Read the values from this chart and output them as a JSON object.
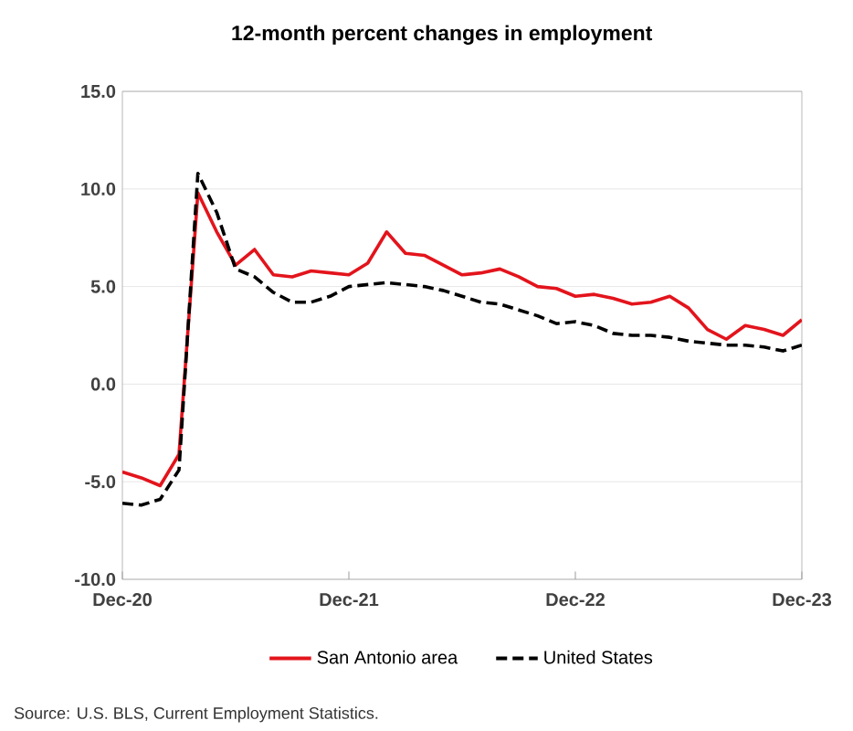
{
  "chart_data": {
    "type": "line",
    "title": "12-month percent changes in employment",
    "x": [
      "2020-12",
      "2021-01",
      "2021-02",
      "2021-03",
      "2021-04",
      "2021-05",
      "2021-06",
      "2021-07",
      "2021-08",
      "2021-09",
      "2021-10",
      "2021-11",
      "2021-12",
      "2022-01",
      "2022-02",
      "2022-03",
      "2022-04",
      "2022-05",
      "2022-06",
      "2022-07",
      "2022-08",
      "2022-09",
      "2022-10",
      "2022-11",
      "2022-12",
      "2023-01",
      "2023-02",
      "2023-03",
      "2023-04",
      "2023-05",
      "2023-06",
      "2023-07",
      "2023-08",
      "2023-09",
      "2023-10",
      "2023-11",
      "2023-12"
    ],
    "series": [
      {
        "name": "San Antonio area",
        "color": "#e3141c",
        "line_style": "solid",
        "values": [
          -4.5,
          -4.8,
          -5.2,
          -3.6,
          9.8,
          7.8,
          6.1,
          6.9,
          5.6,
          5.5,
          5.8,
          5.7,
          5.6,
          6.2,
          7.8,
          6.7,
          6.6,
          6.1,
          5.6,
          5.7,
          5.9,
          5.5,
          5.0,
          4.9,
          4.5,
          4.6,
          4.4,
          4.1,
          4.2,
          4.5,
          3.9,
          2.8,
          2.3,
          3.0,
          2.8,
          2.5,
          3.3
        ]
      },
      {
        "name": "United States",
        "color": "#000000",
        "line_style": "dashed",
        "values": [
          -6.1,
          -6.2,
          -5.9,
          -4.4,
          10.8,
          8.8,
          5.9,
          5.5,
          4.7,
          4.2,
          4.2,
          4.5,
          5.0,
          5.1,
          5.2,
          5.1,
          5.0,
          4.8,
          4.5,
          4.2,
          4.1,
          3.8,
          3.5,
          3.1,
          3.2,
          3.0,
          2.6,
          2.5,
          2.5,
          2.4,
          2.2,
          2.1,
          2.0,
          2.0,
          1.9,
          1.7,
          2.0
        ]
      }
    ],
    "xlim": [
      "2020-12",
      "2023-12"
    ],
    "xticks": [
      {
        "value": "2020-12",
        "label": "Dec-20"
      },
      {
        "value": "2021-12",
        "label": "Dec-21"
      },
      {
        "value": "2022-12",
        "label": "Dec-22"
      },
      {
        "value": "2023-12",
        "label": "Dec-23"
      }
    ],
    "ylim": [
      -10,
      15
    ],
    "yticks": [
      {
        "value": -10,
        "label": "-10.0"
      },
      {
        "value": -5,
        "label": "-5.0"
      },
      {
        "value": 0,
        "label": "0.0"
      },
      {
        "value": 5,
        "label": "5.0"
      },
      {
        "value": 10,
        "label": "10.0"
      },
      {
        "value": 15,
        "label": "15.0"
      }
    ],
    "grid": "y",
    "legend": "bottom",
    "marker": "none",
    "annotations": [
      "Source: U.S. BLS, Current Employment Statistics."
    ]
  }
}
